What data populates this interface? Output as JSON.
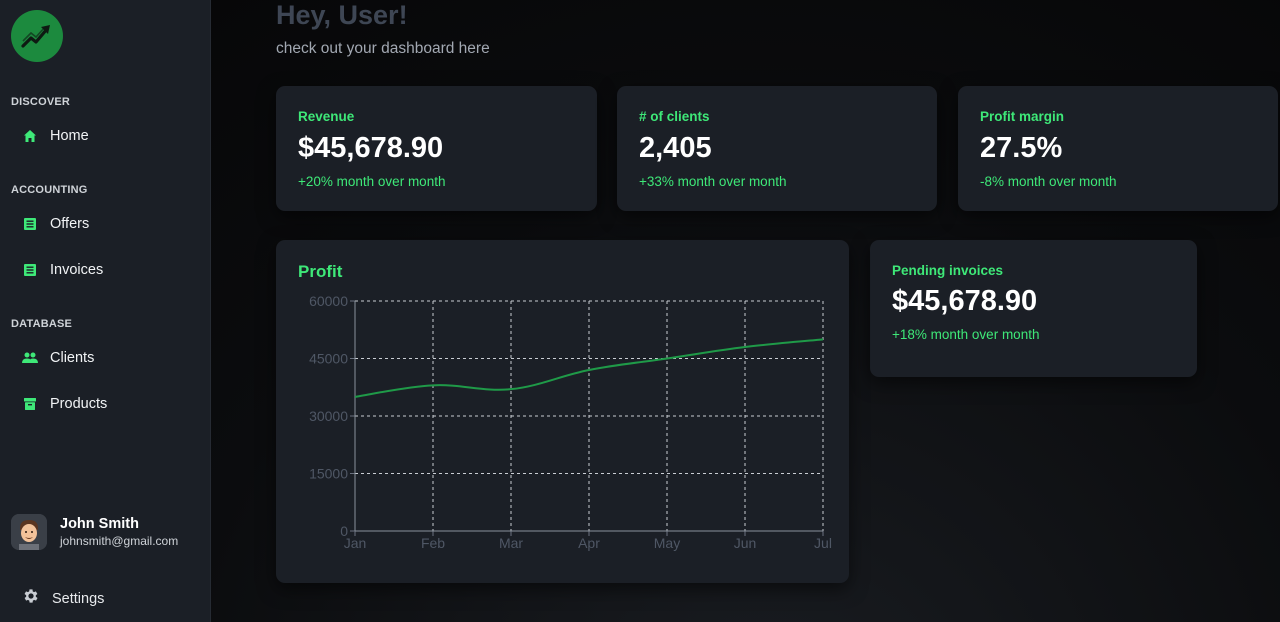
{
  "sidebar": {
    "sections": [
      {
        "label": "DISCOVER"
      },
      {
        "label": "ACCOUNTING"
      },
      {
        "label": "DATABASE"
      }
    ],
    "items": [
      {
        "label": "Home",
        "icon": "home-icon"
      },
      {
        "label": "Offers",
        "icon": "list-icon"
      },
      {
        "label": "Invoices",
        "icon": "list-icon"
      },
      {
        "label": "Clients",
        "icon": "people-icon"
      },
      {
        "label": "Products",
        "icon": "archive-icon"
      }
    ],
    "user": {
      "name": "John Smith",
      "email": "johnsmith@gmail.com"
    },
    "settings_label": "Settings"
  },
  "header": {
    "greeting": "Hey, User!",
    "subtitle": "check out your dashboard here"
  },
  "cards": [
    {
      "title": "Revenue",
      "value": "$45,678.90",
      "change": "+20% month over month"
    },
    {
      "title": "# of clients",
      "value": "2,405",
      "change": "+33% month over month"
    },
    {
      "title": "Profit margin",
      "value": "27.5%",
      "change": "-8% month over month"
    },
    {
      "title": "Pending invoices",
      "value": "$45,678.90",
      "change": "+18% month over month"
    }
  ],
  "colors": {
    "accent": "#3ee878",
    "line": "#1f9a48",
    "card_bg": "#1b1f26",
    "sidebar_bg": "#1b1f26"
  },
  "chart_data": {
    "type": "line",
    "title": "Profit",
    "categories": [
      "Jan",
      "Feb",
      "Mar",
      "Apr",
      "May",
      "Jun",
      "Jul"
    ],
    "series": [
      {
        "values": [
          35000,
          38000,
          37000,
          42000,
          45000,
          48000,
          50000
        ]
      }
    ],
    "yticks": [
      "60000",
      "45000",
      "30000",
      "15000",
      "0"
    ],
    "ylim": [
      0,
      60000
    ],
    "grid": true,
    "xlabel": "",
    "ylabel": ""
  }
}
